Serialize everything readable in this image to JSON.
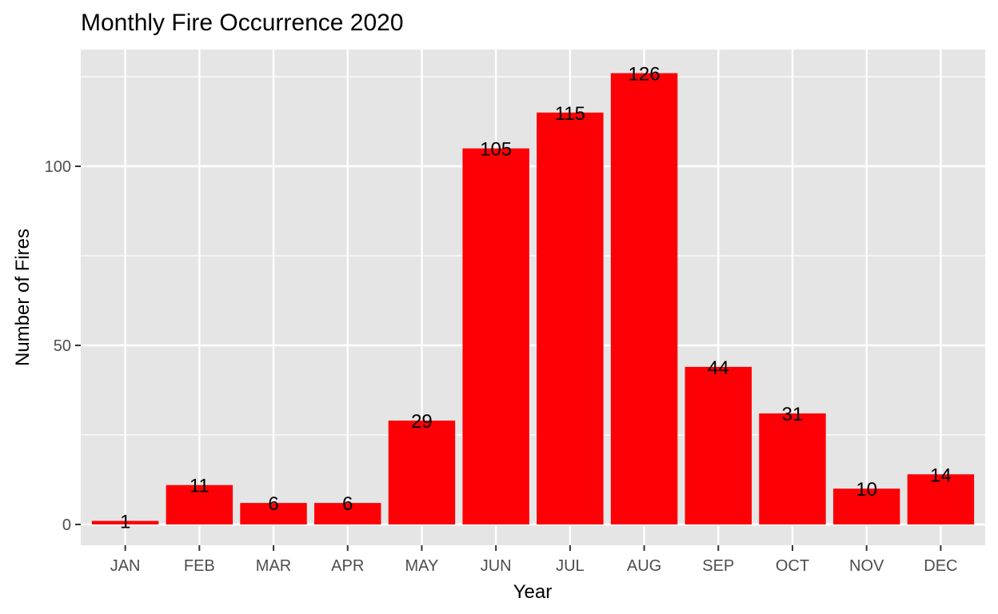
{
  "chart_data": {
    "type": "bar",
    "title": "Monthly Fire Occurrence 2020",
    "xlabel": "Year",
    "ylabel": "Number of Fires",
    "categories": [
      "JAN",
      "FEB",
      "MAR",
      "APR",
      "MAY",
      "JUN",
      "JUL",
      "AUG",
      "SEP",
      "OCT",
      "NOV",
      "DEC"
    ],
    "values": [
      1,
      11,
      6,
      6,
      29,
      105,
      115,
      126,
      44,
      31,
      10,
      14
    ],
    "data_labels": [
      "1",
      "11",
      "6",
      "6",
      "29",
      "105",
      "115",
      "126",
      "44",
      "31",
      "10",
      "14"
    ],
    "ylim": [
      0,
      132.3
    ],
    "y_ticks": [
      0,
      50,
      100
    ],
    "y_tick_labels": [
      "0",
      "50",
      "100"
    ],
    "y_minor_ticks": [
      25,
      75,
      125
    ],
    "grid": true,
    "legend": "none",
    "colors": {
      "bar": "#fc0006",
      "panel": "#e5e5e5",
      "grid": "#ffffff",
      "tick_text": "#4d4d4d",
      "tick_mark": "#333333"
    }
  }
}
